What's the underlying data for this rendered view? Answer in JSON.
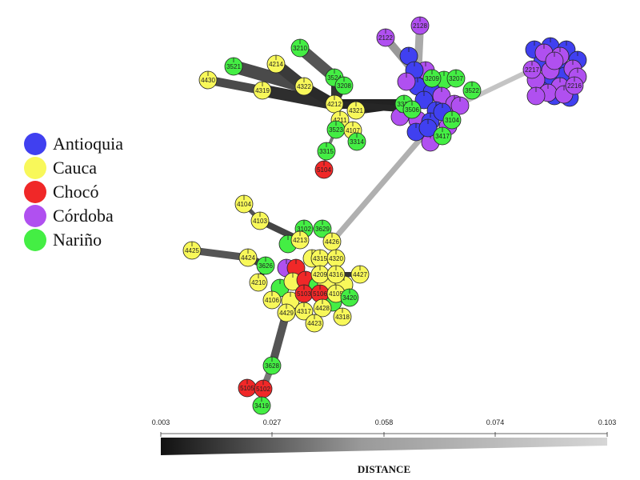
{
  "legend": {
    "items": [
      {
        "label": "Antioquia",
        "color": "#4040f0"
      },
      {
        "label": "Cauca",
        "color": "#f8f85a"
      },
      {
        "label": "Chocó",
        "color": "#f02828"
      },
      {
        "label": "Córdoba",
        "color": "#b050f0"
      },
      {
        "label": "Nariño",
        "color": "#44ee44"
      }
    ]
  },
  "scale": {
    "title": "DISTANCE",
    "ticks": [
      "0.003",
      "0.027",
      "0.058",
      "0.074",
      "0.103"
    ]
  },
  "nodes": [
    {
      "label": "3210",
      "group": "Nariño"
    },
    {
      "label": "3521",
      "group": "Nariño"
    },
    {
      "label": "4214",
      "group": "Cauca"
    },
    {
      "label": "4430",
      "group": "Cauca"
    },
    {
      "label": "4319",
      "group": "Cauca"
    },
    {
      "label": "4322",
      "group": "Cauca"
    },
    {
      "label": "3524",
      "group": "Nariño"
    },
    {
      "label": "3208",
      "group": "Nariño"
    },
    {
      "label": "4212",
      "group": "Cauca"
    },
    {
      "label": "4321",
      "group": "Cauca"
    },
    {
      "label": "4211",
      "group": "Cauca"
    },
    {
      "label": "3523",
      "group": "Nariño"
    },
    {
      "label": "4107",
      "group": "Cauca"
    },
    {
      "label": "3314",
      "group": "Nariño"
    },
    {
      "label": "3315",
      "group": "Nariño"
    },
    {
      "label": "5104",
      "group": "Chocó"
    },
    {
      "label": "2122",
      "group": "Córdoba"
    },
    {
      "label": "2128",
      "group": "Córdoba"
    },
    {
      "label": "3209",
      "group": "Nariño"
    },
    {
      "label": "3207",
      "group": "Nariño"
    },
    {
      "label": "3522",
      "group": "Nariño"
    },
    {
      "label": "3311",
      "group": "Nariño"
    },
    {
      "label": "3506",
      "group": "Nariño"
    },
    {
      "label": "3104",
      "group": "Nariño"
    },
    {
      "label": "3417",
      "group": "Nariño"
    },
    {
      "label": "2217",
      "group": "Córdoba"
    },
    {
      "label": "2216",
      "group": "Córdoba"
    },
    {
      "label": "4104",
      "group": "Cauca"
    },
    {
      "label": "4103",
      "group": "Cauca"
    },
    {
      "label": "3102",
      "group": "Nariño"
    },
    {
      "label": "3629",
      "group": "Nariño"
    },
    {
      "label": "4213",
      "group": "Cauca"
    },
    {
      "label": "4426",
      "group": "Cauca"
    },
    {
      "label": "4425",
      "group": "Cauca"
    },
    {
      "label": "4424",
      "group": "Cauca"
    },
    {
      "label": "3626",
      "group": "Nariño"
    },
    {
      "label": "4315",
      "group": "Cauca"
    },
    {
      "label": "4320",
      "group": "Cauca"
    },
    {
      "label": "4210",
      "group": "Cauca"
    },
    {
      "label": "4209",
      "group": "Cauca"
    },
    {
      "label": "4316",
      "group": "Cauca"
    },
    {
      "label": "4427",
      "group": "Cauca"
    },
    {
      "label": "5103",
      "group": "Chocó"
    },
    {
      "label": "5106",
      "group": "Chocó"
    },
    {
      "label": "4105",
      "group": "Cauca"
    },
    {
      "label": "3420",
      "group": "Nariño"
    },
    {
      "label": "4106",
      "group": "Cauca"
    },
    {
      "label": "4429",
      "group": "Cauca"
    },
    {
      "label": "4317",
      "group": "Cauca"
    },
    {
      "label": "4428",
      "group": "Cauca"
    },
    {
      "label": "4423",
      "group": "Cauca"
    },
    {
      "label": "4318",
      "group": "Cauca"
    },
    {
      "label": "3628",
      "group": "Nariño"
    },
    {
      "label": "5105",
      "group": "Chocó"
    },
    {
      "label": "5102",
      "group": "Chocó"
    },
    {
      "label": "3419",
      "group": "Nariño"
    }
  ]
}
